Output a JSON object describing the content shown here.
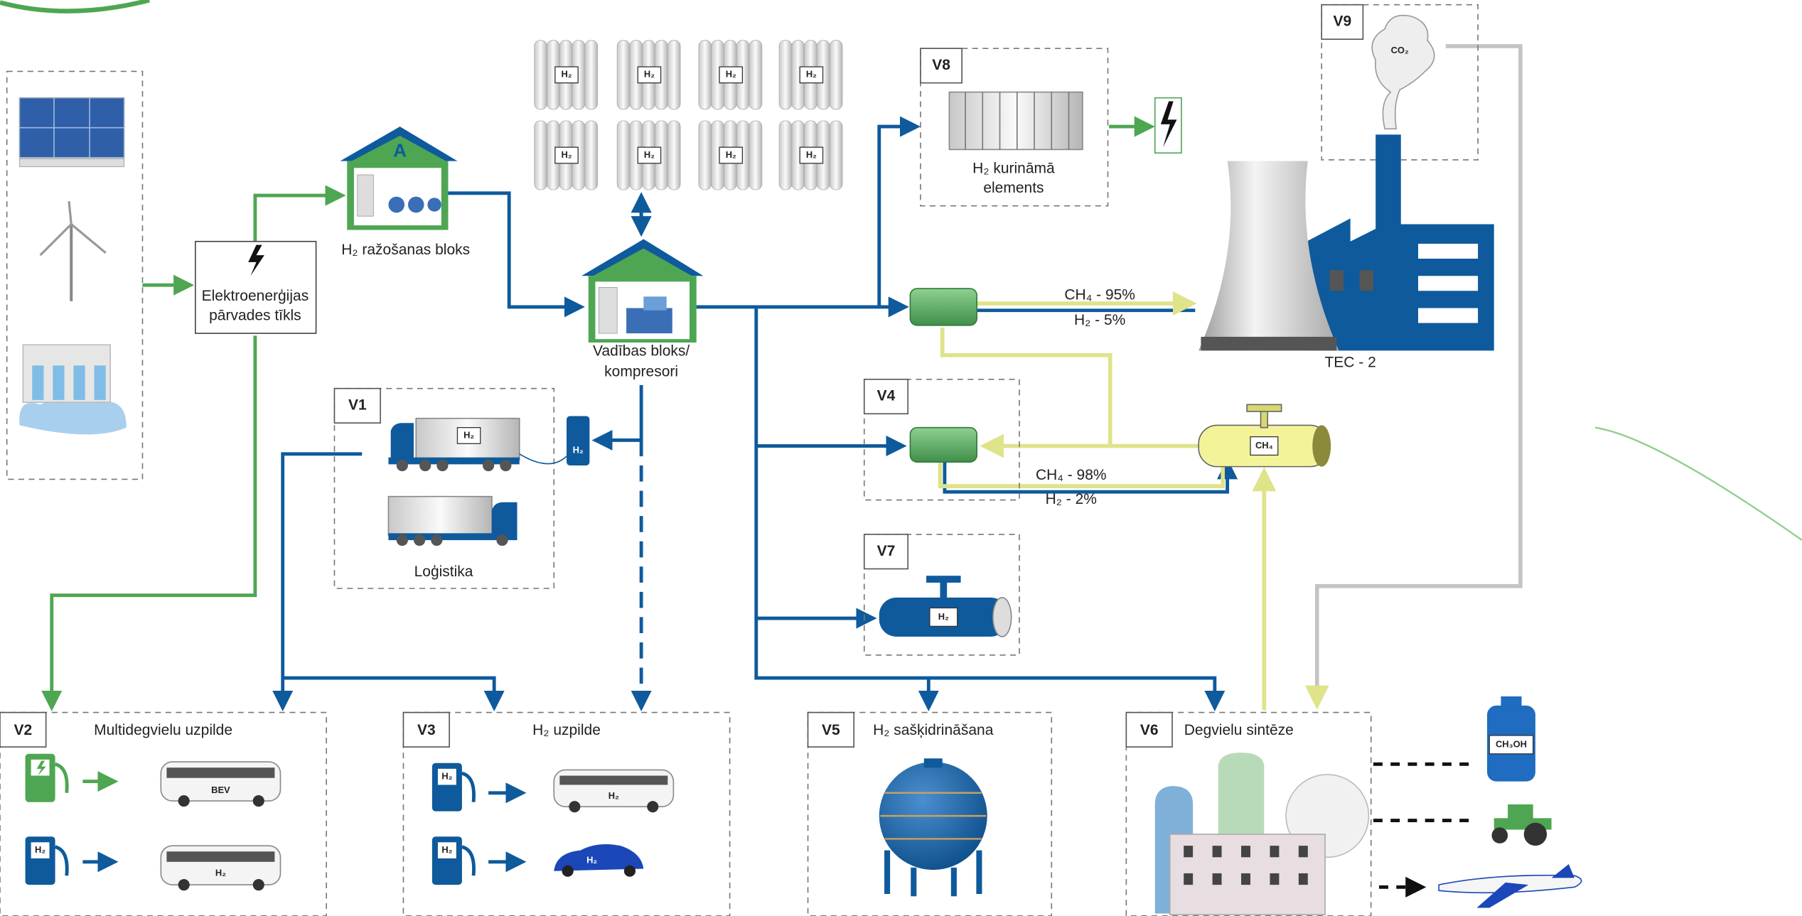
{
  "grid_box": {
    "lines": [
      "Elektroenerģijas",
      "pārvades tīkls"
    ]
  },
  "production": {
    "label": "H₂ ražošanas bloks",
    "icon": "A"
  },
  "control": {
    "lines": [
      "Vadības bloks/",
      "kompresori"
    ]
  },
  "storage": {
    "tank_label": "H₂"
  },
  "fuel_cell": {
    "id": "V8",
    "lines": [
      "H₂ kurināmā",
      "elements"
    ]
  },
  "emissions": {
    "id": "V9",
    "label": "CO₂"
  },
  "blend_tec": {
    "ch4": "CH₄ - 95%",
    "h2": "H₂ - 5%"
  },
  "tec": {
    "label": "TEC - 2"
  },
  "blend_v4": {
    "id": "V4",
    "ch4": "CH₄ - 98%",
    "h2": "H₂ - 2%"
  },
  "gas_pipe": {
    "label": "CH₄"
  },
  "h2_pipe": {
    "id": "V7",
    "label": "H₂"
  },
  "logistics": {
    "id": "V1",
    "label": "Loģistika",
    "cargo_label": "H₂"
  },
  "multifuel": {
    "id": "V2",
    "title": "Multidegvielu uzpilde",
    "bus_bev": "BEV",
    "fuel_label": "H₂"
  },
  "h2_station": {
    "id": "V3",
    "title": "H₂ uzpilde",
    "fuel_label": "H₂"
  },
  "liquefaction": {
    "id": "V5",
    "title": "H₂ sašķidrināšana"
  },
  "synthesis": {
    "id": "V6",
    "title": "Degvielu sintēze",
    "product": "CH₃OH"
  }
}
